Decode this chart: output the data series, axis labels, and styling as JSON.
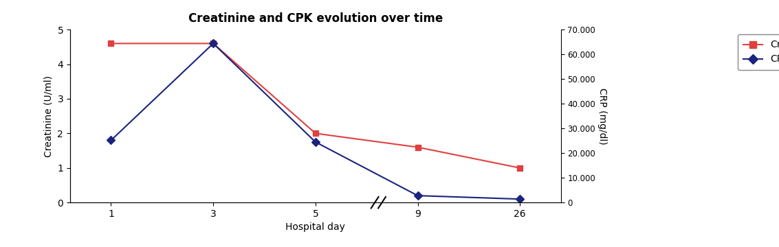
{
  "title": "Creatinine and CPK evolution over time",
  "xlabel": "Hospital day",
  "ylabel_left": "Creatinine (U/ml)",
  "ylabel_right": "CRP (mg/dl)",
  "x_positions": [
    0,
    1,
    2,
    3,
    4
  ],
  "x_labels": [
    "1",
    "3",
    "5",
    "9",
    "26"
  ],
  "creatinine_values": [
    4.6,
    4.6,
    2.0,
    1.6,
    1.0
  ],
  "cpk_values": [
    1.8,
    4.6,
    1.75,
    0.2,
    0.1
  ],
  "creatinine_color": "#e04040",
  "cpk_color": "#1a237e",
  "ylim_left": [
    0,
    5
  ],
  "ylim_right": [
    0,
    70000
  ],
  "yticks_left": [
    0,
    1,
    2,
    3,
    4,
    5
  ],
  "yticks_right": [
    0,
    10000,
    20000,
    30000,
    40000,
    50000,
    60000,
    70000
  ],
  "ytick_labels_right": [
    "0",
    "10.000",
    "20.000",
    "30.000",
    "40.000",
    "50.000",
    "60.000",
    "70.000"
  ],
  "legend_labels": [
    "Creatinine",
    "CPK"
  ],
  "background_color": "#ffffff"
}
